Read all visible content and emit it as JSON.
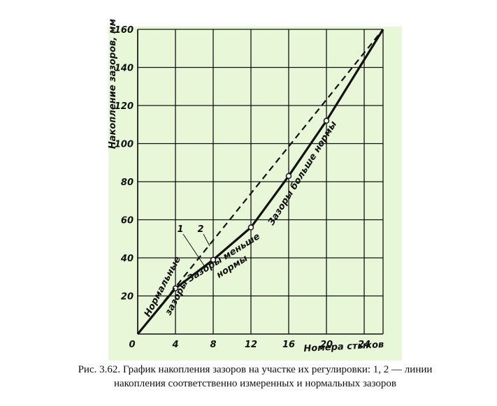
{
  "chart_data": {
    "type": "line",
    "y_label": "Накопление зазоров, мм",
    "x_label": "Номера стыков",
    "xlim": [
      0,
      26
    ],
    "ylim": [
      0,
      160
    ],
    "xticks": [
      0,
      4,
      8,
      12,
      16,
      20,
      24
    ],
    "yticks": [
      20,
      40,
      60,
      80,
      100,
      120,
      140,
      160
    ],
    "grid": true,
    "series": [
      {
        "name": "1",
        "color": "#111111",
        "dash": false,
        "markers": true,
        "x": [
          0,
          4,
          8,
          12,
          16,
          20,
          26
        ],
        "values": [
          0,
          24,
          39,
          56,
          83,
          112,
          160
        ]
      },
      {
        "name": "2",
        "color": "#111111",
        "dash": true,
        "markers": false,
        "x": [
          0,
          26
        ],
        "values": [
          0,
          160
        ]
      }
    ],
    "annotations": [
      "Нормальные",
      "зазоры",
      "Зазоры меньше",
      "нормы",
      "Зазоры больше нормы"
    ],
    "caption": [
      "Рис. 3.62. График накопления зазоров на участке их регулировки: 1, 2 — линии",
      "накопления соответственно измеренных и нормальных зазоров"
    ]
  }
}
